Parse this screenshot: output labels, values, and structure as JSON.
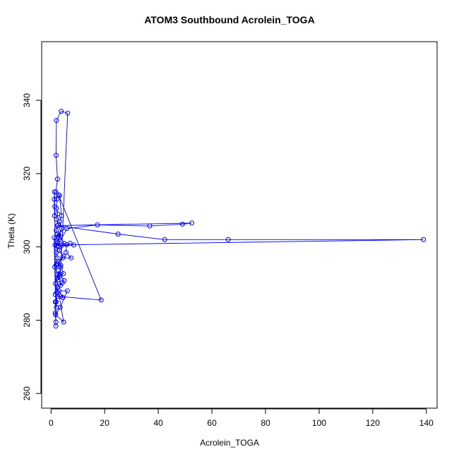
{
  "chart_data": {
    "type": "scatter",
    "title": "ATOM3 Southbound Acrolein_TOGA",
    "xlabel": "Acrolein_TOGA",
    "ylabel": "Theta (K)",
    "xlim": [
      -3.5,
      144
    ],
    "ylim": [
      256,
      356
    ],
    "x_ticks": [
      0,
      20,
      40,
      60,
      80,
      100,
      120,
      140
    ],
    "y_ticks": [
      260,
      280,
      300,
      320,
      340
    ],
    "grid": false,
    "series_color": "#0000ff",
    "points": [
      [
        1.8,
        278.4
      ],
      [
        1.6,
        282
      ],
      [
        1.9,
        285
      ],
      [
        2.1,
        287.5
      ],
      [
        1.7,
        290
      ],
      [
        2.2,
        292.5
      ],
      [
        1.9,
        295
      ],
      [
        2.3,
        297
      ],
      [
        2.0,
        298.5
      ],
      [
        2.6,
        300
      ],
      [
        2.2,
        301.5
      ],
      [
        3.0,
        302.5
      ],
      [
        2.4,
        303.5
      ],
      [
        1.9,
        304.5
      ],
      [
        2.7,
        306
      ],
      [
        2.1,
        307.5
      ],
      [
        2.5,
        309
      ],
      [
        2.0,
        310.5
      ],
      [
        2.2,
        313
      ],
      [
        1.8,
        315
      ],
      [
        2.4,
        318.5
      ],
      [
        1.9,
        325
      ],
      [
        2.0,
        334.5
      ],
      [
        3.8,
        337
      ],
      [
        6.2,
        336.5
      ],
      [
        4.1,
        300.5
      ],
      [
        3.3,
        292
      ],
      [
        2.6,
        291
      ],
      [
        3.6,
        294.5
      ],
      [
        2.9,
        296
      ],
      [
        4.6,
        297.5
      ],
      [
        3.1,
        299
      ],
      [
        4.8,
        301
      ],
      [
        2.9,
        303
      ],
      [
        4.0,
        305
      ],
      [
        3.3,
        307
      ],
      [
        3.9,
        308.5
      ],
      [
        3.2,
        314
      ],
      [
        2.8,
        314.2
      ],
      [
        18.7,
        285.5
      ],
      [
        2.4,
        286.5
      ],
      [
        3.6,
        286.5
      ],
      [
        4.4,
        286.2
      ],
      [
        3.0,
        288
      ],
      [
        6.1,
        288
      ],
      [
        3.4,
        283.5
      ],
      [
        1.7,
        281.5
      ],
      [
        4.7,
        279.5
      ],
      [
        2.5,
        289
      ],
      [
        4.9,
        290.8
      ],
      [
        3.4,
        292.5
      ],
      [
        4.6,
        292.7
      ],
      [
        3.6,
        295
      ],
      [
        2.4,
        295.5
      ],
      [
        4.4,
        297
      ],
      [
        7.5,
        297
      ],
      [
        5.6,
        298.5
      ],
      [
        5.8,
        300.6
      ],
      [
        7.1,
        301
      ],
      [
        8.5,
        300.5
      ],
      [
        2.6,
        300.3
      ],
      [
        5.9,
        305
      ],
      [
        17.3,
        306
      ],
      [
        36.8,
        305.7
      ],
      [
        49.0,
        306.2
      ],
      [
        52.5,
        306.5
      ],
      [
        2.4,
        305.8
      ],
      [
        25.0,
        303.5
      ],
      [
        42.4,
        302
      ],
      [
        66.1,
        302
      ],
      [
        138.9,
        302
      ],
      [
        1.5,
        300.5
      ],
      [
        2.5,
        301.2
      ],
      [
        3.6,
        303.7
      ],
      [
        1.2,
        302.5
      ],
      [
        1.4,
        294.5
      ],
      [
        1.6,
        287
      ],
      [
        1.4,
        311
      ],
      [
        1.3,
        308.5
      ],
      [
        1.2,
        313
      ],
      [
        1.3,
        315
      ],
      [
        1.8,
        279.5
      ],
      [
        1.6,
        285
      ],
      [
        2.0,
        283.5
      ],
      [
        2.3,
        291.5
      ],
      [
        2.8,
        293.5
      ],
      [
        3.5,
        289.5
      ],
      [
        4.2,
        290.2
      ]
    ]
  }
}
